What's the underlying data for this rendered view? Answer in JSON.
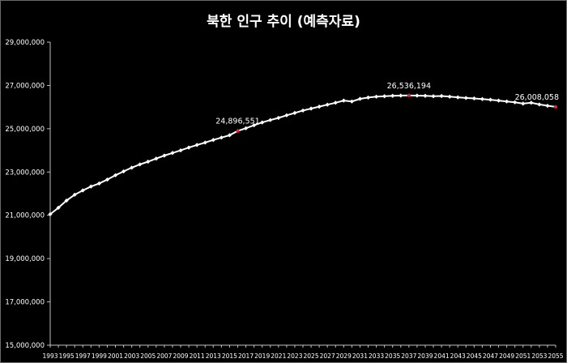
{
  "chart_data": {
    "type": "line",
    "title": "북한 인구 추이 (예측자료)",
    "xlabel": "",
    "ylabel": "",
    "ylim": [
      15000000,
      29000000
    ],
    "yticks": [
      15000000,
      17000000,
      19000000,
      21000000,
      23000000,
      25000000,
      27000000,
      29000000
    ],
    "ytick_labels": [
      "15,000,000",
      "17,000,000",
      "19,000,000",
      "21,000,000",
      "23,000,000",
      "25,000,000",
      "27,000,000",
      "29,000,000"
    ],
    "xtick_labels": [
      "1993",
      "1995",
      "1997",
      "1999",
      "2001",
      "2003",
      "2005",
      "2007",
      "2009",
      "2011",
      "2013",
      "2015",
      "2017",
      "2019",
      "2021",
      "2023",
      "2025",
      "2027",
      "2029",
      "2031",
      "2033",
      "2035",
      "2037",
      "2039",
      "2041",
      "2043",
      "2045",
      "2047",
      "2049",
      "2051",
      "2053",
      "2055"
    ],
    "grid": false,
    "legend": "none",
    "series": [
      {
        "color": "#ffffff",
        "x": [
          1993,
          1994,
          1995,
          1996,
          1997,
          1998,
          1999,
          2000,
          2001,
          2002,
          2003,
          2004,
          2005,
          2006,
          2007,
          2008,
          2009,
          2010,
          2011,
          2012,
          2013,
          2014,
          2015,
          2016,
          2017,
          2018,
          2019,
          2020,
          2021,
          2022,
          2023,
          2024,
          2025,
          2026,
          2027,
          2028,
          2029,
          2030,
          2031,
          2032,
          2033,
          2034,
          2035,
          2036,
          2037,
          2038,
          2039,
          2040,
          2041,
          2042,
          2043,
          2044,
          2045,
          2046,
          2047,
          2048,
          2049,
          2050,
          2051,
          2052,
          2053,
          2054,
          2055
        ],
        "values": [
          21050000,
          21350000,
          21680000,
          21950000,
          22150000,
          22330000,
          22470000,
          22650000,
          22850000,
          23030000,
          23200000,
          23350000,
          23480000,
          23620000,
          23760000,
          23880000,
          24000000,
          24130000,
          24250000,
          24360000,
          24480000,
          24590000,
          24700000,
          24896551,
          25020000,
          25160000,
          25290000,
          25400000,
          25500000,
          25620000,
          25730000,
          25840000,
          25930000,
          26020000,
          26110000,
          26200000,
          26300000,
          26260000,
          26380000,
          26440000,
          26480000,
          26500000,
          26520000,
          26530000,
          26536194,
          26530000,
          26520000,
          26500000,
          26510000,
          26480000,
          26450000,
          26420000,
          26400000,
          26370000,
          26340000,
          26300000,
          26260000,
          26220000,
          26160000,
          26200000,
          26120000,
          26060000,
          26008058
        ]
      }
    ],
    "highlighted_points": [
      {
        "x": 2016,
        "value": 24896551,
        "label": "24,896,551"
      },
      {
        "x": 2037,
        "value": 26536194,
        "label": "26,536,194"
      },
      {
        "x": 2055,
        "value": 26008058,
        "label": "26,008,058"
      }
    ],
    "highlight_color": "#e0283a"
  }
}
